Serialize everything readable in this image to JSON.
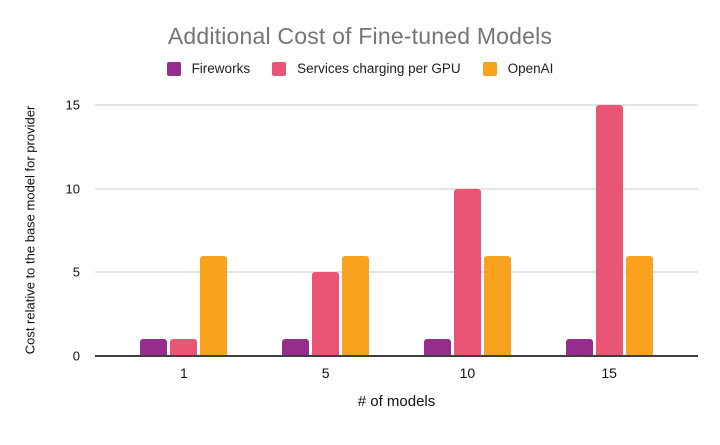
{
  "chart_data": {
    "type": "bar",
    "title": "Additional Cost of Fine-tuned Models",
    "xlabel": "# of models",
    "ylabel": "Cost relative to the base model for provider",
    "categories": [
      "1",
      "5",
      "10",
      "15"
    ],
    "series": [
      {
        "name": "Fireworks",
        "color": "#962D8C",
        "values": [
          1,
          1,
          1,
          1
        ]
      },
      {
        "name": "Services charging per GPU",
        "color": "#EA5576",
        "values": [
          1,
          5,
          10,
          15
        ]
      },
      {
        "name": "OpenAI",
        "color": "#F9A21D",
        "values": [
          6,
          6,
          6,
          6
        ]
      }
    ],
    "ylim": [
      0,
      15
    ],
    "yticks": [
      0,
      5,
      10,
      15
    ],
    "grid": true,
    "legend_position": "top"
  },
  "colors": {
    "title_text": "#757575",
    "axis_text": "#111111",
    "gridline": "#e4e4e4",
    "baseline": "#3f3f3f",
    "background": "#ffffff"
  }
}
